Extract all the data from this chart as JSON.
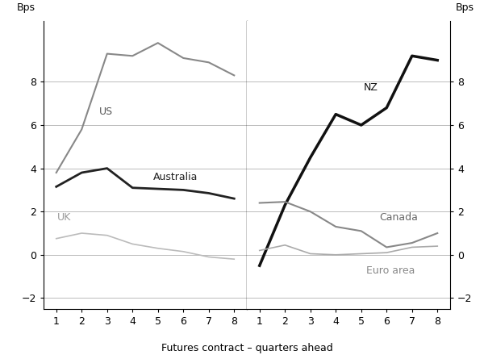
{
  "x": [
    1,
    2,
    3,
    4,
    5,
    6,
    7,
    8
  ],
  "left_panel": {
    "US": [
      3.8,
      5.8,
      9.3,
      9.2,
      9.8,
      9.1,
      8.9,
      8.3
    ],
    "Australia": [
      3.15,
      3.8,
      4.0,
      3.1,
      3.05,
      3.0,
      2.85,
      2.6
    ],
    "UK": [
      0.75,
      1.0,
      0.9,
      0.5,
      0.3,
      0.15,
      -0.1,
      -0.2
    ]
  },
  "right_panel": {
    "NZ": [
      -0.5,
      2.3,
      4.5,
      6.5,
      6.0,
      6.8,
      9.2,
      9.0
    ],
    "Canada": [
      2.4,
      2.45,
      2.0,
      1.3,
      1.1,
      0.35,
      0.55,
      1.0
    ],
    "Euro area": [
      0.2,
      0.45,
      0.05,
      0.0,
      0.05,
      0.1,
      0.35,
      0.4
    ]
  },
  "colors": {
    "US": "#888888",
    "Australia": "#222222",
    "UK": "#bbbbbb",
    "NZ": "#111111",
    "Canada": "#888888",
    "Euro area": "#aaaaaa"
  },
  "line_widths": {
    "US": 1.5,
    "Australia": 2.0,
    "UK": 1.2,
    "NZ": 2.5,
    "Canada": 1.5,
    "Euro area": 1.2
  },
  "ylim": [
    -2.5,
    10.8
  ],
  "yticks": [
    -2,
    0,
    2,
    4,
    6,
    8
  ],
  "xlabel": "Futures contract – quarters ahead",
  "ylabel_left": "Bps",
  "ylabel_right": "Bps",
  "grid_color": "#bbbbbb",
  "background_color": "#ffffff",
  "text_color": "#000000",
  "fontsize": 9
}
